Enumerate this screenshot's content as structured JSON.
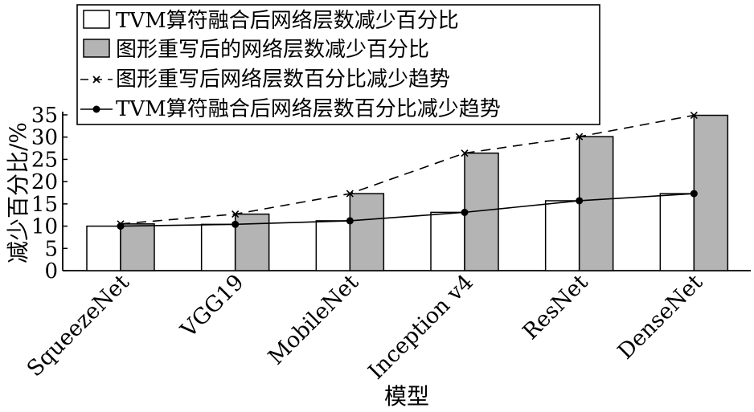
{
  "chart_data": {
    "type": "bar",
    "categories": [
      "SqueezeNet",
      "VGG19",
      "MobileNet",
      "Inception v4",
      "ResNet",
      "DenseNet"
    ],
    "series": [
      {
        "name": "TVM算符融合后网络层数减少百分比",
        "kind": "bar",
        "values": [
          10,
          10.4,
          11.2,
          13.1,
          15.7,
          17.3
        ]
      },
      {
        "name": "图形重写后的网络层数减少百分比",
        "kind": "bar",
        "values": [
          10.5,
          12.7,
          17.3,
          26.4,
          30.1,
          34.9
        ]
      },
      {
        "name": "图形重写后网络层数百分比减少趋势",
        "kind": "line",
        "values": [
          10.5,
          12.7,
          17.3,
          26.4,
          30.1,
          34.9
        ]
      },
      {
        "name": "TVM算符融合后网络层数百分比减少趋势",
        "kind": "line",
        "values": [
          10,
          10.4,
          11.2,
          13.1,
          15.7,
          17.3
        ]
      }
    ],
    "xlabel": "模型",
    "ylabel": "减少百分比/%",
    "ylim": [
      0,
      35
    ],
    "yticks": [
      0,
      5,
      10,
      15,
      20,
      25,
      30,
      35
    ],
    "grid": false,
    "legend_position": "top-left",
    "colors": {
      "bar_tvm": "#ffffff",
      "bar_rewrite": "#b4b4b4",
      "line": "#000000"
    }
  }
}
